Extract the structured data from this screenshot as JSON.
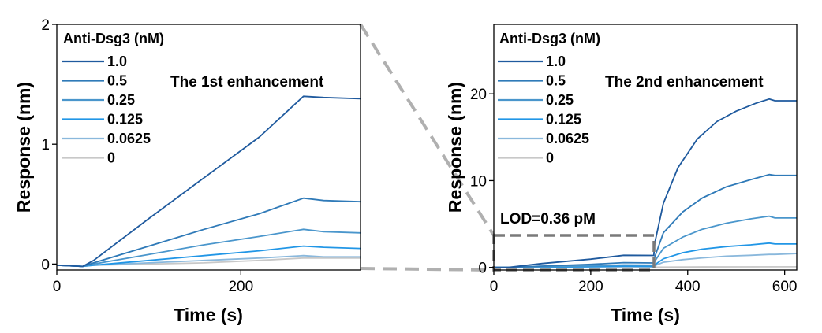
{
  "chart_data": [
    {
      "type": "line",
      "title": "",
      "annotation": "The 1st enhancement",
      "xlabel": "Time (s)",
      "ylabel": "Response (nm)",
      "xlim": [
        0,
        330
      ],
      "ylim": [
        -0.05,
        2
      ],
      "xticks": [
        0,
        200
      ],
      "yticks": [
        0,
        1,
        2
      ],
      "legend_title": "Anti-Dsg3 (nM)",
      "legend_position": "top-left",
      "series": [
        {
          "name": "1.0",
          "color": "#1f5a9e",
          "points": [
            [
              0,
              -0.01
            ],
            [
              28,
              -0.02
            ],
            [
              40,
              0.03
            ],
            [
              100,
              0.38
            ],
            [
              160,
              0.72
            ],
            [
              220,
              1.06
            ],
            [
              268,
              1.4
            ],
            [
              290,
              1.39
            ],
            [
              330,
              1.38
            ]
          ]
        },
        {
          "name": "0.5",
          "color": "#2f7ab8",
          "points": [
            [
              0,
              -0.01
            ],
            [
              28,
              -0.02
            ],
            [
              40,
              0.01
            ],
            [
              100,
              0.15
            ],
            [
              160,
              0.29
            ],
            [
              220,
              0.42
            ],
            [
              268,
              0.55
            ],
            [
              290,
              0.53
            ],
            [
              330,
              0.52
            ]
          ]
        },
        {
          "name": "0.25",
          "color": "#4a96cc",
          "points": [
            [
              0,
              -0.01
            ],
            [
              28,
              -0.02
            ],
            [
              40,
              0.0
            ],
            [
              100,
              0.08
            ],
            [
              160,
              0.16
            ],
            [
              220,
              0.23
            ],
            [
              268,
              0.29
            ],
            [
              290,
              0.27
            ],
            [
              330,
              0.26
            ]
          ]
        },
        {
          "name": "0.125",
          "color": "#2196e6",
          "points": [
            [
              0,
              -0.01
            ],
            [
              28,
              -0.02
            ],
            [
              40,
              -0.01
            ],
            [
              100,
              0.03
            ],
            [
              160,
              0.07
            ],
            [
              220,
              0.11
            ],
            [
              268,
              0.15
            ],
            [
              290,
              0.14
            ],
            [
              330,
              0.13
            ]
          ]
        },
        {
          "name": "0.0625",
          "color": "#8ab8dc",
          "points": [
            [
              0,
              -0.01
            ],
            [
              28,
              -0.02
            ],
            [
              40,
              -0.01
            ],
            [
              100,
              0.01
            ],
            [
              160,
              0.03
            ],
            [
              220,
              0.05
            ],
            [
              268,
              0.07
            ],
            [
              290,
              0.06
            ],
            [
              330,
              0.06
            ]
          ]
        },
        {
          "name": "0",
          "color": "#c8c8c8",
          "points": [
            [
              0,
              -0.01
            ],
            [
              28,
              -0.02
            ],
            [
              40,
              -0.01
            ],
            [
              100,
              0.0
            ],
            [
              160,
              0.01
            ],
            [
              220,
              0.03
            ],
            [
              268,
              0.05
            ],
            [
              290,
              0.05
            ],
            [
              330,
              0.05
            ]
          ]
        }
      ]
    },
    {
      "type": "line",
      "title": "",
      "annotation": "The 2nd enhancement",
      "lod_label": "LOD=0.36 pM",
      "xlabel": "Time (s)",
      "ylabel": "Response (nm)",
      "xlim": [
        0,
        625
      ],
      "ylim": [
        -0.3,
        28
      ],
      "xticks": [
        0,
        200,
        400,
        600
      ],
      "yticks": [
        0,
        10,
        20
      ],
      "legend_title": "Anti-Dsg3 (nM)",
      "legend_position": "top-left",
      "lod_box": {
        "x_range": [
          0,
          330
        ],
        "y_range": [
          -0.3,
          3.5
        ]
      },
      "series": [
        {
          "name": "1.0",
          "color": "#1f5a9e",
          "points": [
            [
              0,
              0
            ],
            [
              30,
              0
            ],
            [
              100,
              0.45
            ],
            [
              200,
              0.95
            ],
            [
              268,
              1.4
            ],
            [
              330,
              1.38
            ],
            [
              332,
              2.8
            ],
            [
              350,
              7.4
            ],
            [
              380,
              11.5
            ],
            [
              420,
              14.8
            ],
            [
              460,
              16.8
            ],
            [
              500,
              18.0
            ],
            [
              540,
              18.9
            ],
            [
              568,
              19.4
            ],
            [
              580,
              19.2
            ],
            [
              625,
              19.2
            ]
          ]
        },
        {
          "name": "0.5",
          "color": "#2f7ab8",
          "points": [
            [
              0,
              0
            ],
            [
              30,
              0
            ],
            [
              100,
              0.15
            ],
            [
              200,
              0.35
            ],
            [
              268,
              0.55
            ],
            [
              330,
              0.52
            ],
            [
              332,
              1.2
            ],
            [
              350,
              4.0
            ],
            [
              390,
              6.4
            ],
            [
              430,
              8.0
            ],
            [
              480,
              9.3
            ],
            [
              530,
              10.1
            ],
            [
              568,
              10.7
            ],
            [
              580,
              10.6
            ],
            [
              625,
              10.6
            ]
          ]
        },
        {
          "name": "0.25",
          "color": "#4a96cc",
          "points": [
            [
              0,
              0
            ],
            [
              30,
              0
            ],
            [
              100,
              0.08
            ],
            [
              200,
              0.18
            ],
            [
              268,
              0.29
            ],
            [
              330,
              0.26
            ],
            [
              332,
              0.7
            ],
            [
              350,
              2.2
            ],
            [
              390,
              3.5
            ],
            [
              430,
              4.4
            ],
            [
              480,
              5.1
            ],
            [
              530,
              5.6
            ],
            [
              568,
              5.9
            ],
            [
              580,
              5.7
            ],
            [
              625,
              5.7
            ]
          ]
        },
        {
          "name": "0.125",
          "color": "#2196e6",
          "points": [
            [
              0,
              0
            ],
            [
              30,
              0
            ],
            [
              100,
              0.04
            ],
            [
              200,
              0.09
            ],
            [
              268,
              0.15
            ],
            [
              330,
              0.13
            ],
            [
              332,
              0.3
            ],
            [
              350,
              1.0
            ],
            [
              390,
              1.7
            ],
            [
              430,
              2.1
            ],
            [
              480,
              2.4
            ],
            [
              530,
              2.6
            ],
            [
              568,
              2.8
            ],
            [
              580,
              2.7
            ],
            [
              625,
              2.7
            ]
          ]
        },
        {
          "name": "0.0625",
          "color": "#8ab8dc",
          "points": [
            [
              0,
              0
            ],
            [
              30,
              0
            ],
            [
              100,
              0.02
            ],
            [
              200,
              0.04
            ],
            [
              268,
              0.07
            ],
            [
              330,
              0.06
            ],
            [
              332,
              0.2
            ],
            [
              350,
              0.6
            ],
            [
              390,
              0.9
            ],
            [
              430,
              1.1
            ],
            [
              480,
              1.3
            ],
            [
              530,
              1.4
            ],
            [
              568,
              1.5
            ],
            [
              580,
              1.5
            ],
            [
              625,
              1.6
            ]
          ]
        },
        {
          "name": "0",
          "color": "#c8c8c8",
          "points": [
            [
              0,
              0
            ],
            [
              100,
              0.01
            ],
            [
              200,
              0.02
            ],
            [
              330,
              0.03
            ],
            [
              400,
              0.05
            ],
            [
              500,
              0.06
            ],
            [
              625,
              0.07
            ]
          ]
        }
      ]
    }
  ]
}
